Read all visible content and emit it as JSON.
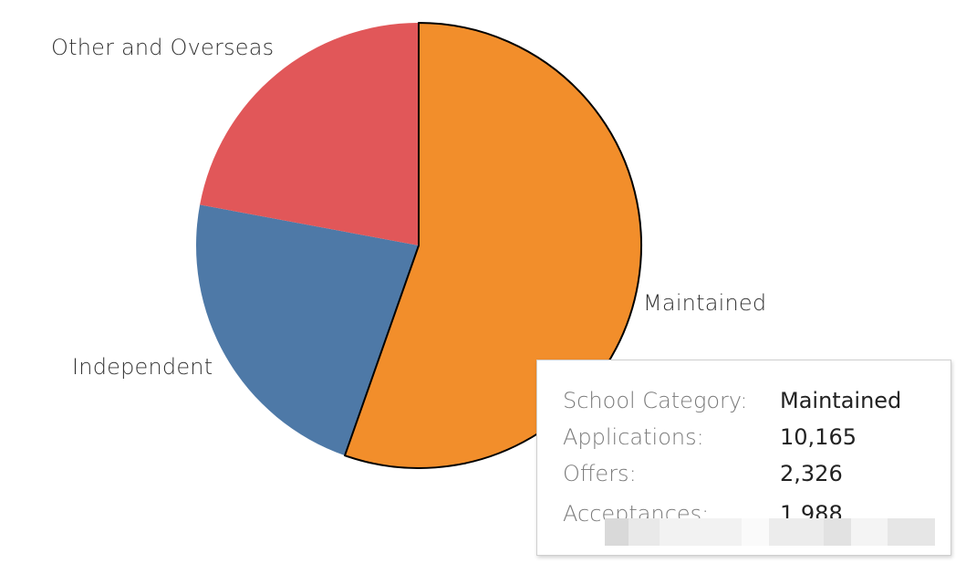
{
  "chart_data": {
    "type": "pie",
    "title": "",
    "slices": [
      {
        "label": "Maintained",
        "value": 10165,
        "color": "#F28E2B"
      },
      {
        "label": "Independent",
        "value": 4138,
        "color": "#4E79A7"
      },
      {
        "label": "Other and Overseas",
        "value": 4051,
        "color": "#E15759"
      }
    ],
    "start_angle_deg": 0,
    "direction": "clockwise",
    "legend": "none"
  },
  "tooltip": {
    "rows": [
      {
        "key": "School Category:",
        "value": "Maintained"
      },
      {
        "key": "Applications:",
        "value": "10,165"
      },
      {
        "key": "Offers:",
        "value": "2,326"
      },
      {
        "key": "Acceptances:",
        "value": "1,988"
      }
    ]
  }
}
